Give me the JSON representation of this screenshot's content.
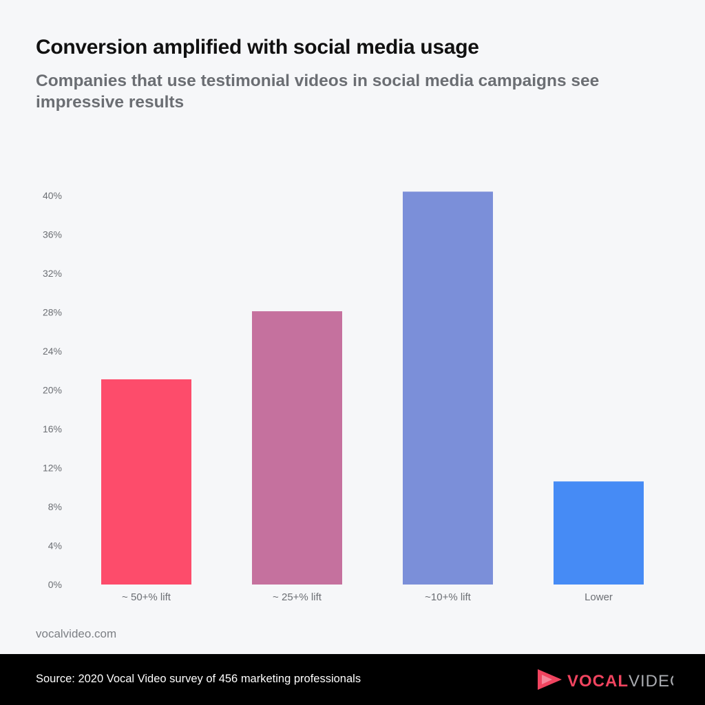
{
  "header": {
    "title": "Conversion amplified with social media usage",
    "subtitle": "Companies that use testimonial videos in social media campaigns see impressive results"
  },
  "chart_data": {
    "type": "bar",
    "title": "Conversion amplified with social media usage",
    "subtitle": "Companies that use testimonial videos in social media campaigns see impressive results",
    "categories": [
      "~ 50+% lift",
      "~ 25+% lift",
      "~10+% lift",
      "Lower"
    ],
    "values": [
      21.1,
      28.1,
      40.4,
      10.6
    ],
    "colors": [
      "#fd4c6b",
      "#c5719e",
      "#7b8fd9",
      "#468bf5"
    ],
    "xlabel": "",
    "ylabel": "",
    "ylim": [
      0,
      40
    ],
    "yticks": [
      "0%",
      "4%",
      "8%",
      "12%",
      "16%",
      "20%",
      "24%",
      "28%",
      "32%",
      "36%",
      "40%"
    ],
    "grid": false,
    "legend": "none"
  },
  "footer": {
    "site": "vocalvideo.com",
    "source": "Source: 2020 Vocal Video survey of 456 marketing professionals",
    "logo_text": "VOCALVIDEO",
    "logo_red": "#f0445f",
    "logo_gray": "#a9abb0"
  }
}
